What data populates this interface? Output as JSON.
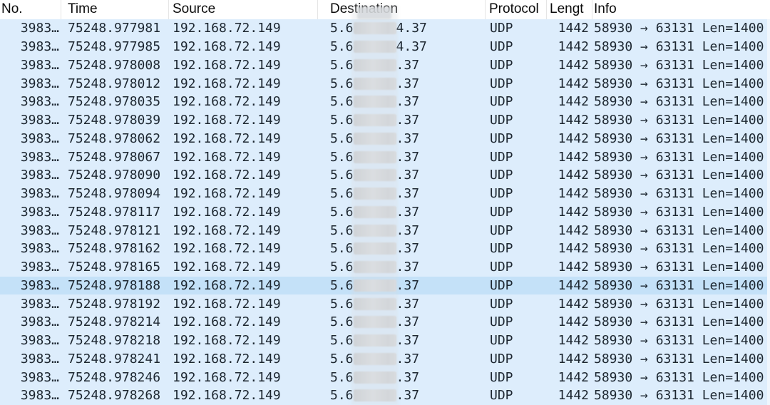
{
  "app": "packet-capture-list",
  "columns": [
    {
      "id": "no",
      "label": "No."
    },
    {
      "id": "time",
      "label": "Time"
    },
    {
      "id": "source",
      "label": "Source"
    },
    {
      "id": "destination",
      "label": "Destination"
    },
    {
      "id": "protocol",
      "label": "Protocol"
    },
    {
      "id": "length",
      "label": "Lengt"
    },
    {
      "id": "info",
      "label": "Info"
    }
  ],
  "destination_redacted": true,
  "colors": {
    "row_background": "#ddedfc",
    "selected_row_background": "#c4e1f8",
    "row_text": "#1d2731",
    "header_background": "#ffffff",
    "header_text": "#0b0b0b",
    "header_separator": "#e5e5e5",
    "redaction_grey": "#d4d8db"
  },
  "rows": [
    {
      "no": "3983…",
      "time": "75248.977981",
      "source": "192.168.72.149",
      "dest_prefix": "5.6",
      "dest_suffix": "4.37",
      "protocol": "UDP",
      "length": "1442",
      "info": "58930 → 63131 Len=1400",
      "selected": false
    },
    {
      "no": "3983…",
      "time": "75248.977985",
      "source": "192.168.72.149",
      "dest_prefix": "5.6",
      "dest_suffix": "4.37",
      "protocol": "UDP",
      "length": "1442",
      "info": "58930 → 63131 Len=1400",
      "selected": false
    },
    {
      "no": "3983…",
      "time": "75248.978008",
      "source": "192.168.72.149",
      "dest_prefix": "5.6",
      "dest_suffix": ".37",
      "protocol": "UDP",
      "length": "1442",
      "info": "58930 → 63131 Len=1400",
      "selected": false
    },
    {
      "no": "3983…",
      "time": "75248.978012",
      "source": "192.168.72.149",
      "dest_prefix": "5.6",
      "dest_suffix": ".37",
      "protocol": "UDP",
      "length": "1442",
      "info": "58930 → 63131 Len=1400",
      "selected": false
    },
    {
      "no": "3983…",
      "time": "75248.978035",
      "source": "192.168.72.149",
      "dest_prefix": "5.6",
      "dest_suffix": ".37",
      "protocol": "UDP",
      "length": "1442",
      "info": "58930 → 63131 Len=1400",
      "selected": false
    },
    {
      "no": "3983…",
      "time": "75248.978039",
      "source": "192.168.72.149",
      "dest_prefix": "5.6",
      "dest_suffix": ".37",
      "protocol": "UDP",
      "length": "1442",
      "info": "58930 → 63131 Len=1400",
      "selected": false
    },
    {
      "no": "3983…",
      "time": "75248.978062",
      "source": "192.168.72.149",
      "dest_prefix": "5.6",
      "dest_suffix": ".37",
      "protocol": "UDP",
      "length": "1442",
      "info": "58930 → 63131 Len=1400",
      "selected": false
    },
    {
      "no": "3983…",
      "time": "75248.978067",
      "source": "192.168.72.149",
      "dest_prefix": "5.6",
      "dest_suffix": ".37",
      "protocol": "UDP",
      "length": "1442",
      "info": "58930 → 63131 Len=1400",
      "selected": false
    },
    {
      "no": "3983…",
      "time": "75248.978090",
      "source": "192.168.72.149",
      "dest_prefix": "5.6",
      "dest_suffix": ".37",
      "protocol": "UDP",
      "length": "1442",
      "info": "58930 → 63131 Len=1400",
      "selected": false
    },
    {
      "no": "3983…",
      "time": "75248.978094",
      "source": "192.168.72.149",
      "dest_prefix": "5.6",
      "dest_suffix": ".37",
      "protocol": "UDP",
      "length": "1442",
      "info": "58930 → 63131 Len=1400",
      "selected": false
    },
    {
      "no": "3983…",
      "time": "75248.978117",
      "source": "192.168.72.149",
      "dest_prefix": "5.6",
      "dest_suffix": ".37",
      "protocol": "UDP",
      "length": "1442",
      "info": "58930 → 63131 Len=1400",
      "selected": false
    },
    {
      "no": "3983…",
      "time": "75248.978121",
      "source": "192.168.72.149",
      "dest_prefix": "5.6",
      "dest_suffix": ".37",
      "protocol": "UDP",
      "length": "1442",
      "info": "58930 → 63131 Len=1400",
      "selected": false
    },
    {
      "no": "3983…",
      "time": "75248.978162",
      "source": "192.168.72.149",
      "dest_prefix": "5.6",
      "dest_suffix": ".37",
      "protocol": "UDP",
      "length": "1442",
      "info": "58930 → 63131 Len=1400",
      "selected": false
    },
    {
      "no": "3983…",
      "time": "75248.978165",
      "source": "192.168.72.149",
      "dest_prefix": "5.6",
      "dest_suffix": ".37",
      "protocol": "UDP",
      "length": "1442",
      "info": "58930 → 63131 Len=1400",
      "selected": false
    },
    {
      "no": "3983…",
      "time": "75248.978188",
      "source": "192.168.72.149",
      "dest_prefix": "5.6",
      "dest_suffix": ".37",
      "protocol": "UDP",
      "length": "1442",
      "info": "58930 → 63131 Len=1400",
      "selected": true
    },
    {
      "no": "3983…",
      "time": "75248.978192",
      "source": "192.168.72.149",
      "dest_prefix": "5.6",
      "dest_suffix": ".37",
      "protocol": "UDP",
      "length": "1442",
      "info": "58930 → 63131 Len=1400",
      "selected": false
    },
    {
      "no": "3983…",
      "time": "75248.978214",
      "source": "192.168.72.149",
      "dest_prefix": "5.6",
      "dest_suffix": ".37",
      "protocol": "UDP",
      "length": "1442",
      "info": "58930 → 63131 Len=1400",
      "selected": false
    },
    {
      "no": "3983…",
      "time": "75248.978218",
      "source": "192.168.72.149",
      "dest_prefix": "5.6",
      "dest_suffix": ".37",
      "protocol": "UDP",
      "length": "1442",
      "info": "58930 → 63131 Len=1400",
      "selected": false
    },
    {
      "no": "3983…",
      "time": "75248.978241",
      "source": "192.168.72.149",
      "dest_prefix": "5.6",
      "dest_suffix": ".37",
      "protocol": "UDP",
      "length": "1442",
      "info": "58930 → 63131 Len=1400",
      "selected": false
    },
    {
      "no": "3983…",
      "time": "75248.978246",
      "source": "192.168.72.149",
      "dest_prefix": "5.6",
      "dest_suffix": ".37",
      "protocol": "UDP",
      "length": "1442",
      "info": "58930 → 63131 Len=1400",
      "selected": false
    },
    {
      "no": "3983…",
      "time": "75248.978268",
      "source": "192.168.72.149",
      "dest_prefix": "5.6",
      "dest_suffix": ".37",
      "protocol": "UDP",
      "length": "1442",
      "info": "58930 → 63131 Len=1400",
      "selected": false
    }
  ]
}
